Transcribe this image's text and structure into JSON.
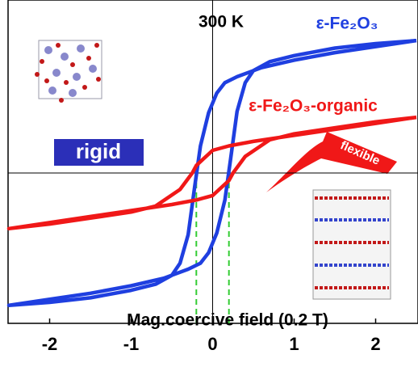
{
  "chart_data": {
    "type": "line",
    "xlim": [
      -2.5,
      2.5
    ],
    "xticks": [
      -2,
      -1,
      0,
      1,
      2
    ],
    "ylim": [
      -1,
      1.15
    ],
    "series": [
      {
        "name": "ε-Fe₂O₃",
        "color": "#1f3fe0",
        "x": [
          2.5,
          2,
          1.5,
          1,
          0.6,
          0.3,
          0.15,
          0.05,
          -0.05,
          -0.15,
          -0.22,
          -0.3,
          -0.4,
          -0.5,
          -0.7,
          -1,
          -1.5,
          -2,
          -2.5,
          -2,
          -1.5,
          -1,
          -0.6,
          -0.3,
          -0.15,
          -0.05,
          0.05,
          0.15,
          0.22,
          0.3,
          0.4,
          0.5,
          0.7,
          1,
          1.5,
          2,
          2.5
        ],
        "values": [
          0.88,
          0.84,
          0.8,
          0.75,
          0.7,
          0.64,
          0.6,
          0.53,
          0.4,
          0.18,
          -0.09,
          -0.41,
          -0.6,
          -0.68,
          -0.74,
          -0.78,
          -0.83,
          -0.86,
          -0.88,
          -0.84,
          -0.8,
          -0.75,
          -0.7,
          -0.64,
          -0.6,
          -0.53,
          -0.4,
          -0.18,
          0.09,
          0.41,
          0.6,
          0.68,
          0.74,
          0.78,
          0.83,
          0.86,
          0.88
        ]
      },
      {
        "name": "ε-Fe₂O₃-organic",
        "color": "#f01818",
        "x": [
          2.5,
          2,
          1.5,
          1,
          0.5,
          0.2,
          0,
          -0.2,
          -0.25,
          -0.4,
          -0.7,
          -1,
          -1.5,
          -2,
          -2.5,
          -2,
          -1.5,
          -1,
          -0.5,
          -0.2,
          0,
          0.2,
          0.25,
          0.4,
          0.7,
          1,
          1.5,
          2,
          2.5
        ],
        "values": [
          0.37,
          0.33,
          0.29,
          0.25,
          0.21,
          0.18,
          0.15,
          0.05,
          0,
          -0.11,
          -0.22,
          -0.26,
          -0.3,
          -0.34,
          -0.37,
          -0.33,
          -0.29,
          -0.25,
          -0.21,
          -0.18,
          -0.15,
          -0.05,
          0,
          0.11,
          0.22,
          0.26,
          0.3,
          0.34,
          0.37
        ]
      }
    ],
    "markers": {
      "x": [
        -0.2,
        0.2
      ],
      "color": "#33cc33"
    },
    "annotations": {
      "temperature": "300 K",
      "coercive": "Mag.coercive field (0.2 T)",
      "rigid": "rigid",
      "flexible": "flexible"
    }
  }
}
